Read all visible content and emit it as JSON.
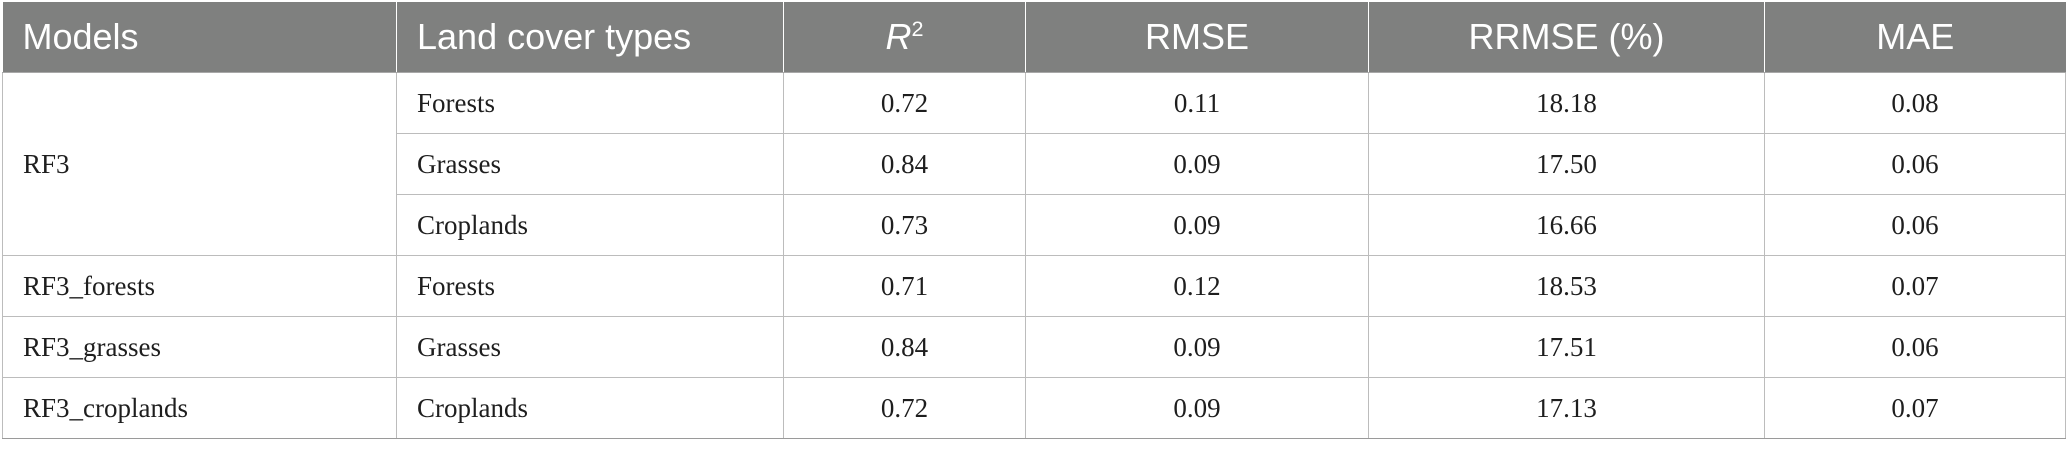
{
  "table": {
    "headers": {
      "models": "Models",
      "land_cover": "Land cover types",
      "r2_base": "R",
      "r2_sup": "2",
      "rmse": "RMSE",
      "rrmse": "RRMSE (%)",
      "mae": "MAE"
    },
    "group_rf3": "RF3",
    "rows": [
      {
        "model": "RF3",
        "land": "Forests",
        "r2": "0.72",
        "rmse": "0.11",
        "rrmse": "18.18",
        "mae": "0.08"
      },
      {
        "model": "RF3",
        "land": "Grasses",
        "r2": "0.84",
        "rmse": "0.09",
        "rrmse": "17.50",
        "mae": "0.06"
      },
      {
        "model": "RF3",
        "land": "Croplands",
        "r2": "0.73",
        "rmse": "0.09",
        "rrmse": "16.66",
        "mae": "0.06"
      },
      {
        "model": "RF3_forests",
        "land": "Forests",
        "r2": "0.71",
        "rmse": "0.12",
        "rrmse": "18.53",
        "mae": "0.07"
      },
      {
        "model": "RF3_grasses",
        "land": "Grasses",
        "r2": "0.84",
        "rmse": "0.09",
        "rrmse": "17.51",
        "mae": "0.06"
      },
      {
        "model": "RF3_croplands",
        "land": "Croplands",
        "r2": "0.72",
        "rmse": "0.09",
        "rrmse": "17.13",
        "mae": "0.07"
      }
    ]
  }
}
